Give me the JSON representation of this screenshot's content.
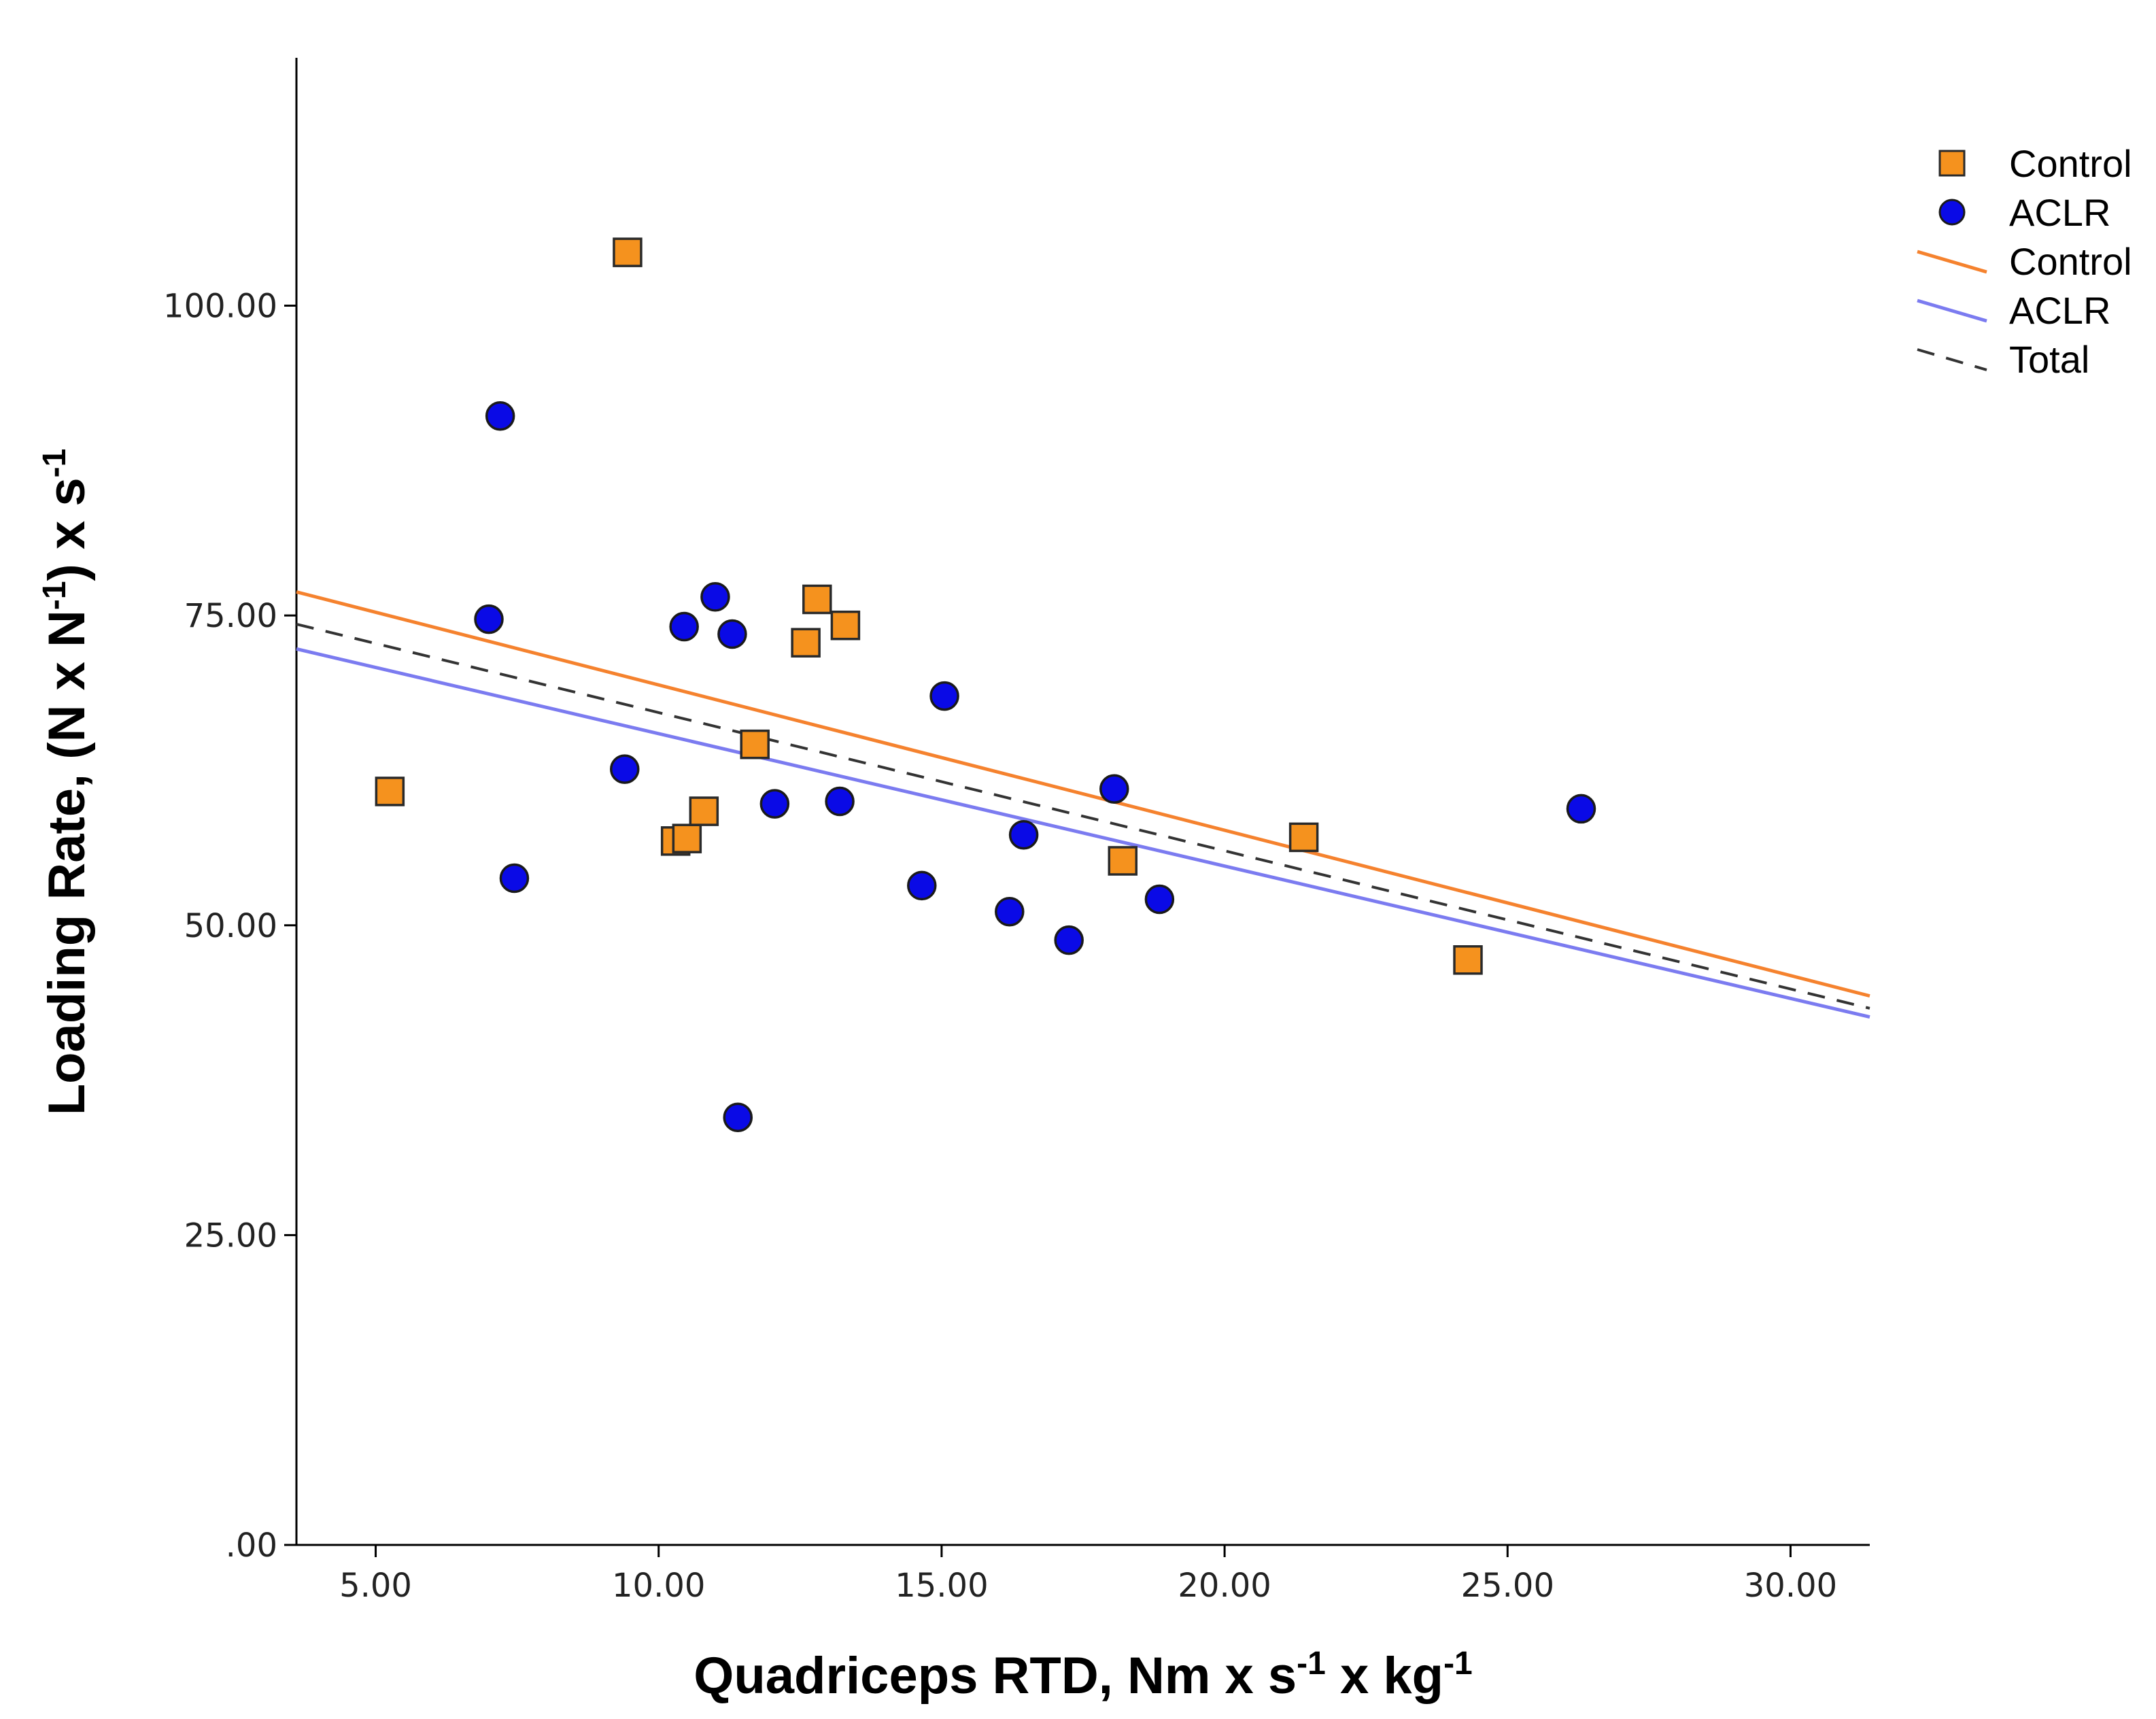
{
  "chart_data": {
    "type": "scatter",
    "title": "",
    "xlabel": {
      "main": "Quadriceps RTD, Nm x s",
      "sup1": "-1",
      "mid": " x kg",
      "sup2": "-1"
    },
    "ylabel": {
      "main": "Loading Rate, (N x N",
      "sup1": "-1",
      "mid": ") x s",
      "sup2": "-1"
    },
    "xlim": [
      3.6,
      31.4
    ],
    "ylim": [
      0,
      120
    ],
    "xticks": [
      5,
      10,
      15,
      20,
      25,
      30
    ],
    "xtick_labels": [
      "5.00",
      "10.00",
      "15.00",
      "20.00",
      "25.00",
      "30.00"
    ],
    "yticks": [
      0,
      25,
      50,
      75,
      100
    ],
    "ytick_labels": [
      ".00",
      "25.00",
      "50.00",
      "75.00",
      "100.00"
    ],
    "grid": false,
    "legend_position": "top-right",
    "series": [
      {
        "name": "Control",
        "marker": "square",
        "color": "#f5921e",
        "points": [
          [
            9.45,
            104.3
          ],
          [
            5.25,
            60.8
          ],
          [
            10.3,
            56.8
          ],
          [
            10.5,
            57.0
          ],
          [
            10.8,
            59.2
          ],
          [
            11.7,
            64.6
          ],
          [
            12.6,
            72.8
          ],
          [
            12.8,
            76.3
          ],
          [
            13.3,
            74.2
          ],
          [
            18.2,
            55.2
          ],
          [
            21.4,
            57.1
          ],
          [
            24.3,
            47.2
          ]
        ]
      },
      {
        "name": "ACLR",
        "marker": "circle",
        "color": "#0a0ae6",
        "points": [
          [
            7.2,
            91.1
          ],
          [
            7.0,
            74.7
          ],
          [
            7.45,
            53.8
          ],
          [
            9.4,
            62.6
          ],
          [
            10.45,
            74.1
          ],
          [
            11.0,
            76.5
          ],
          [
            11.3,
            73.5
          ],
          [
            11.4,
            34.5
          ],
          [
            12.05,
            59.8
          ],
          [
            13.2,
            60.0
          ],
          [
            14.65,
            53.2
          ],
          [
            15.05,
            68.5
          ],
          [
            16.2,
            51.1
          ],
          [
            16.45,
            57.3
          ],
          [
            17.25,
            48.8
          ],
          [
            18.05,
            61.0
          ],
          [
            18.85,
            52.1
          ],
          [
            26.3,
            59.4
          ]
        ]
      }
    ],
    "fit_lines": [
      {
        "name": "Control",
        "color": "#f5822e",
        "style": "solid",
        "x": [
          3.6,
          31.4
        ],
        "y": [
          76.9,
          44.3
        ]
      },
      {
        "name": "ACLR",
        "color": "#7b7bf0",
        "style": "solid",
        "x": [
          3.6,
          31.4
        ],
        "y": [
          72.3,
          42.6
        ]
      },
      {
        "name": "Total",
        "color": "#333333",
        "style": "dashed",
        "x": [
          3.6,
          31.4
        ],
        "y": [
          74.3,
          43.3
        ]
      }
    ],
    "legend": [
      {
        "label": "Control",
        "kind": "square",
        "color": "#f5921e"
      },
      {
        "label": "ACLR",
        "kind": "circle",
        "color": "#0a0ae6"
      },
      {
        "label": "Control",
        "kind": "line",
        "color": "#f5822e"
      },
      {
        "label": "ACLR",
        "kind": "line",
        "color": "#7b7bf0"
      },
      {
        "label": "Total",
        "kind": "dashed",
        "color": "#333333"
      }
    ]
  }
}
